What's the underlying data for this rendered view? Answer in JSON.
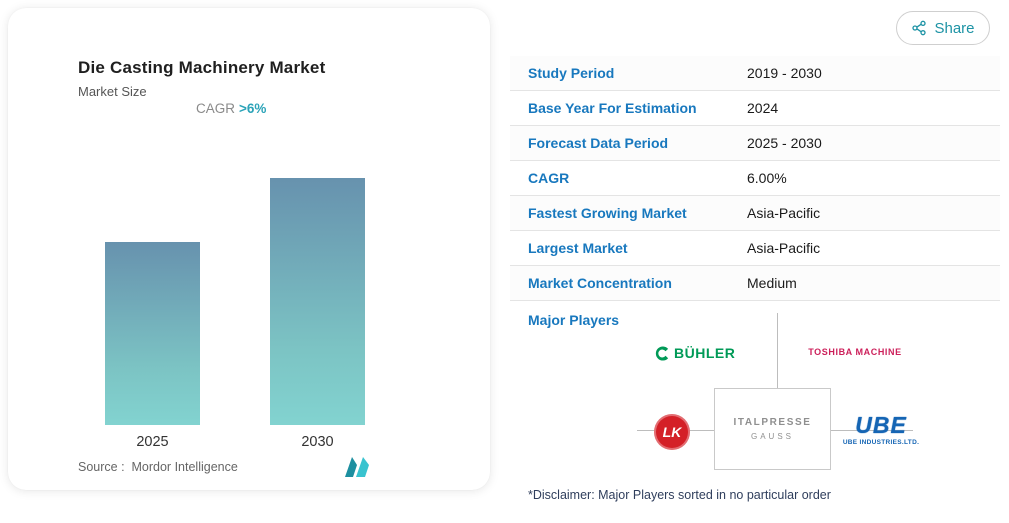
{
  "share": {
    "label": "Share"
  },
  "chart": {
    "title": "Die Casting Machinery Market",
    "subtitle": "Market Size",
    "cagr_label": "CAGR",
    "cagr_value": ">6%",
    "source": "Source :  Mordor Intelligence"
  },
  "chart_data": {
    "type": "bar",
    "title": "Die Casting Machinery Market",
    "subtitle": "Market Size",
    "annotation": "CAGR >6%",
    "categories": [
      "2025",
      "2030"
    ],
    "values": [
      74,
      100
    ],
    "value_axis": "unlabeled relative market size (2030 ≈ 1.34 × 2025, consistent with ~6% CAGR)",
    "grid": false,
    "legend": "none",
    "bar_gradient": [
      "#6792ae",
      "#82d3d0"
    ],
    "source": "Source :  Mordor Intelligence"
  },
  "stats": {
    "rows": [
      {
        "label": "Study Period",
        "value": "2019 - 2030"
      },
      {
        "label": "Base Year For Estimation",
        "value": "2024"
      },
      {
        "label": "Forecast Data Period",
        "value": "2025 - 2030"
      },
      {
        "label": "CAGR",
        "value": "6.00%"
      },
      {
        "label": "Fastest Growing Market",
        "value": "Asia-Pacific"
      },
      {
        "label": "Largest Market",
        "value": "Asia-Pacific"
      },
      {
        "label": "Market Concentration",
        "value": "Medium"
      }
    ]
  },
  "major_players": {
    "label": "Major Players",
    "players": [
      "BÜHLER",
      "TOSHIBA MACHINE",
      "LK",
      "ITALPRESSE GAUSS",
      "UBE INDUSTRIES.LTD."
    ]
  },
  "logos": {
    "buhler": "BÜHLER",
    "toshiba": "TOSHIBA MACHINE",
    "lk": "LK",
    "italpresse_line1": "ITALPRESSE",
    "italpresse_line2": "GAUSS",
    "ube": "UBE",
    "ube_sub": "UBE INDUSTRIES.LTD."
  },
  "disclaimer": "*Disclaimer: Major Players sorted in no particular order",
  "colors": {
    "label_blue": "#1878be",
    "teal_accent": "#2ba3b8",
    "share_teal": "#1d93a5",
    "bar_top": "#6792ae",
    "bar_bottom": "#82d3d0"
  }
}
